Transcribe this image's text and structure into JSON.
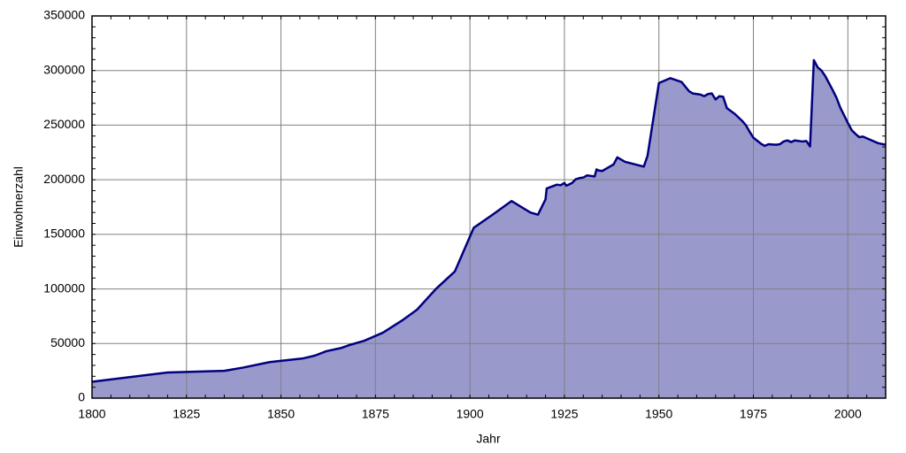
{
  "chart_data": {
    "type": "area",
    "x_label": "Jahr",
    "y_label": "Einwohnerzahl",
    "xlim": [
      1800,
      2010
    ],
    "xticks": [
      1800,
      1825,
      1850,
      1875,
      1900,
      1925,
      1950,
      1975,
      2000
    ],
    "ylim": [
      0,
      350000
    ],
    "yticks": [
      0,
      50000,
      100000,
      150000,
      200000,
      250000,
      300000,
      350000
    ],
    "grid": true,
    "series": [
      {
        "color": "#000080",
        "fill": "#9999cc",
        "x": [
          1800,
          1820,
          1835,
          1840,
          1847,
          1856,
          1859,
          1862,
          1866,
          1868,
          1872,
          1877,
          1882,
          1886,
          1891,
          1896,
          1901,
          1906,
          1911,
          1916,
          1918,
          1920,
          1920.3,
          1923,
          1924,
          1925,
          1925.5,
          1927,
          1928,
          1929,
          1930,
          1931,
          1933,
          1933.5,
          1934,
          1935,
          1937,
          1938,
          1939,
          1940,
          1941,
          1946,
          1947,
          1950,
          1953,
          1956,
          1958,
          1959,
          1961,
          1962,
          1963,
          1964,
          1965,
          1966,
          1967,
          1968,
          1970,
          1972,
          1973,
          1974,
          1975,
          1977,
          1978,
          1979,
          1981,
          1982,
          1983,
          1984,
          1985,
          1986,
          1988,
          1989,
          1990,
          1991,
          1992,
          1993,
          1994,
          1996,
          1997,
          1998,
          2000,
          2001,
          2002,
          2003,
          2004,
          2006,
          2008,
          2010
        ],
        "values": [
          15000,
          23500,
          25000,
          28000,
          33000,
          36500,
          39000,
          43000,
          46000,
          48500,
          52500,
          60000,
          71000,
          81000,
          100000,
          116000,
          156000,
          168000,
          180500,
          170000,
          168000,
          182000,
          192000,
          195500,
          195000,
          197000,
          194500,
          197000,
          200500,
          201500,
          202000,
          204000,
          203000,
          209500,
          208500,
          208000,
          212000,
          214000,
          220500,
          218500,
          216500,
          212000,
          222000,
          288500,
          293000,
          289500,
          281000,
          279000,
          278000,
          276500,
          278500,
          279000,
          273500,
          276500,
          276000,
          265500,
          260500,
          254000,
          250000,
          244000,
          238500,
          233000,
          231000,
          232500,
          232000,
          232500,
          235000,
          236000,
          234500,
          236000,
          235000,
          235500,
          230500,
          309500,
          303000,
          300000,
          295000,
          282000,
          275000,
          266000,
          252000,
          245500,
          242000,
          239000,
          239500,
          236500,
          233500,
          232000
        ]
      }
    ]
  }
}
